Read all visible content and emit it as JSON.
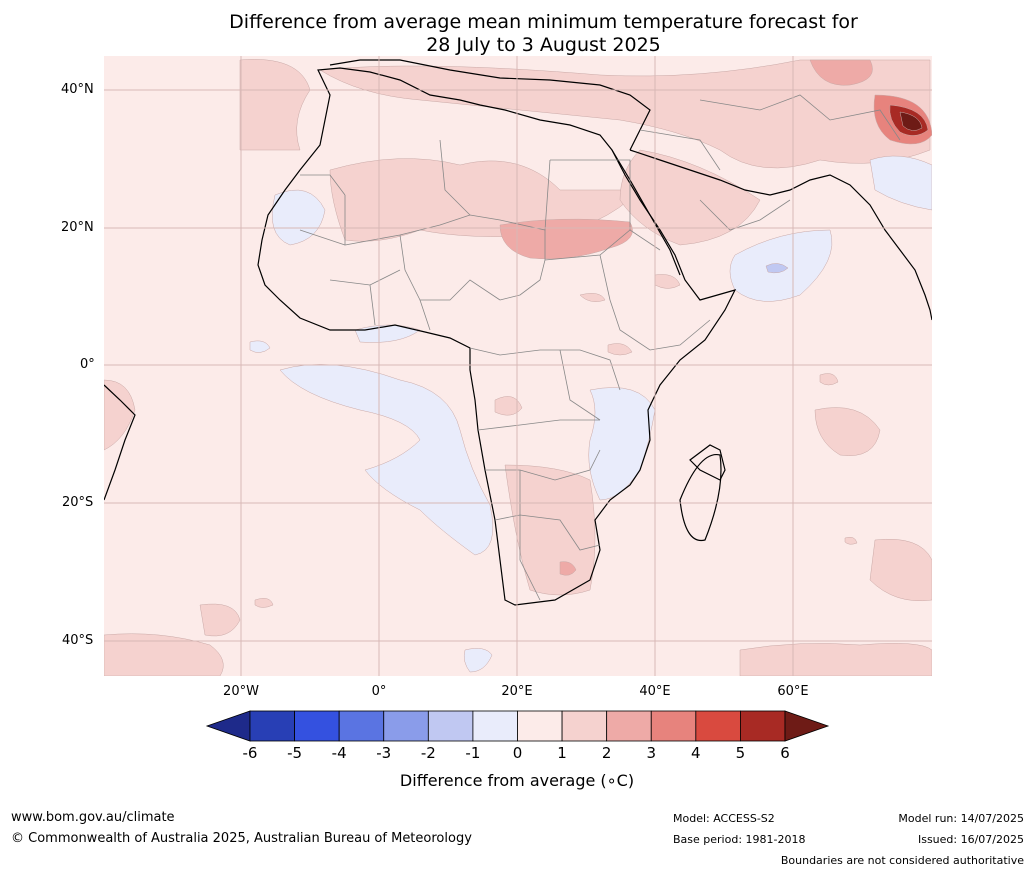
{
  "title_line1": "Difference from average mean minimum temperature forecast for",
  "title_line2": "28 July to 3 August 2025",
  "lat_labels": [
    "40°N",
    "20°N",
    "0°",
    "20°S",
    "40°S"
  ],
  "lon_labels": [
    "20°W",
    "0°",
    "20°E",
    "40°E",
    "60°E"
  ],
  "colorbar": {
    "title": "Difference from average (∘C)",
    "ticks": [
      "-6",
      "-5",
      "-4",
      "-3",
      "-2",
      "-1",
      "0",
      "1",
      "2",
      "3",
      "4",
      "5",
      "6"
    ],
    "colors": [
      "#1e2a8a",
      "#283fb5",
      "#3451e0",
      "#5a74e2",
      "#8a9cea",
      "#c0c8f2",
      "#e9ecfb",
      "#fcebe9",
      "#f5d2cf",
      "#eeaaa7",
      "#e7837d",
      "#d94a3f",
      "#a82a24",
      "#6e1b16"
    ]
  },
  "footer": {
    "website": "www.bom.gov.au/climate",
    "copyright": "© Commonwealth of Australia 2025, Australian Bureau of Meteorology",
    "model": "Model: ACCESS-S2",
    "base_period": "Base period: 1981-2018",
    "model_run": "Model run: 14/07/2025",
    "issued": "Issued: 16/07/2025",
    "disclaimer": "Boundaries are not considered authoritative"
  }
}
